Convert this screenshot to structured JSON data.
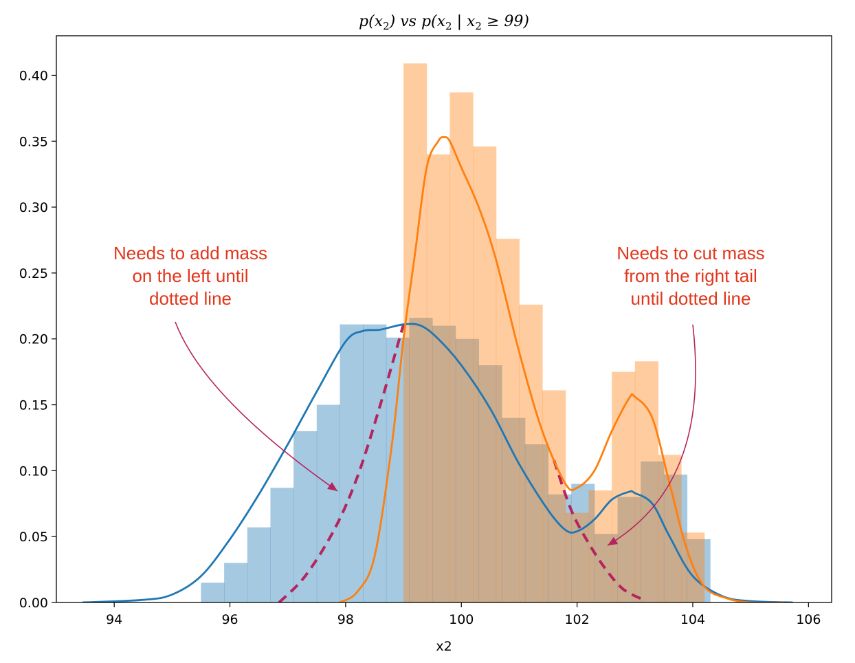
{
  "chart_data": {
    "type": "histogram+kde",
    "title_parts": [
      "p(x",
      "2",
      ") vs p(x",
      "2",
      " | x",
      "2",
      " ≥ 99)"
    ],
    "xlabel": "x2",
    "ylabel": "",
    "xlim": [
      93.0,
      106.4
    ],
    "ylim": [
      0,
      0.43
    ],
    "xticks": [
      94,
      96,
      98,
      100,
      102,
      104,
      106
    ],
    "xtick_labels": [
      "94",
      "96",
      "98",
      "100",
      "102",
      "104",
      "106"
    ],
    "yticks": [
      0.0,
      0.05,
      0.1,
      0.15,
      0.2,
      0.25,
      0.3,
      0.35,
      0.4
    ],
    "ytick_labels": [
      "0.00",
      "0.05",
      "0.10",
      "0.15",
      "0.20",
      "0.25",
      "0.30",
      "0.35",
      "0.40"
    ],
    "grid": false,
    "series": [
      {
        "kind": "histogram",
        "color": "#1f77b4",
        "opacity": 0.4,
        "bin_edges": [
          95.5,
          95.9,
          96.3,
          96.7,
          97.1,
          97.5,
          97.9,
          98.3,
          98.7,
          99.1,
          99.5,
          99.9,
          100.3,
          100.7,
          101.1,
          101.5,
          101.9,
          102.3,
          102.7,
          103.1,
          103.5,
          103.9,
          104.3
        ],
        "values": [
          0.015,
          0.03,
          0.057,
          0.087,
          0.13,
          0.15,
          0.211,
          0.211,
          0.201,
          0.216,
          0.21,
          0.2,
          0.18,
          0.14,
          0.12,
          0.082,
          0.09,
          0.052,
          0.08,
          0.107,
          0.097,
          0.048,
          0.005
        ]
      },
      {
        "kind": "histogram",
        "color": "#ff7f0e",
        "opacity": 0.4,
        "bin_edges": [
          99.0,
          99.4,
          99.8,
          100.2,
          100.6,
          101.0,
          101.4,
          101.8,
          102.2,
          102.6,
          103.0,
          103.4,
          103.8,
          104.2
        ],
        "values": [
          0.409,
          0.34,
          0.387,
          0.346,
          0.276,
          0.226,
          0.161,
          0.068,
          0.085,
          0.175,
          0.183,
          0.112,
          0.053,
          0.006
        ]
      },
      {
        "kind": "kde",
        "color": "#1f77b4",
        "x": [
          93.45,
          94.5,
          95.0,
          95.5,
          96.0,
          96.5,
          97.0,
          97.5,
          98.0,
          98.3,
          98.6,
          99.0,
          99.3,
          99.6,
          100.0,
          100.5,
          101.0,
          101.5,
          101.8,
          102.0,
          102.3,
          102.6,
          102.9,
          103.0,
          103.3,
          103.6,
          104.0,
          104.5,
          105.0,
          105.73
        ],
        "y": [
          0.0,
          0.002,
          0.006,
          0.02,
          0.048,
          0.082,
          0.12,
          0.16,
          0.198,
          0.206,
          0.207,
          0.211,
          0.21,
          0.2,
          0.18,
          0.147,
          0.105,
          0.07,
          0.055,
          0.054,
          0.063,
          0.078,
          0.084,
          0.083,
          0.075,
          0.05,
          0.02,
          0.005,
          0.001,
          0.0
        ]
      },
      {
        "kind": "kde",
        "color": "#ff7f0e",
        "x": [
          97.9,
          98.2,
          98.5,
          98.8,
          99.0,
          99.2,
          99.4,
          99.6,
          99.7,
          99.8,
          100.0,
          100.3,
          100.6,
          101.0,
          101.4,
          101.8,
          102.0,
          102.3,
          102.6,
          102.9,
          103.0,
          103.3,
          103.6,
          103.9,
          104.2,
          104.6,
          105.0,
          105.56
        ],
        "y": [
          0.0,
          0.008,
          0.035,
          0.12,
          0.2,
          0.265,
          0.33,
          0.35,
          0.353,
          0.35,
          0.33,
          0.3,
          0.26,
          0.19,
          0.13,
          0.09,
          0.087,
          0.1,
          0.13,
          0.155,
          0.156,
          0.14,
          0.09,
          0.04,
          0.012,
          0.003,
          0.0,
          0.0
        ]
      },
      {
        "kind": "target-dashed-left",
        "color": "#b5245e",
        "x": [
          96.85,
          97.3,
          97.8,
          98.2,
          98.6,
          99.0
        ],
        "y": [
          0.0,
          0.02,
          0.055,
          0.095,
          0.15,
          0.211
        ]
      },
      {
        "kind": "target-dashed-right",
        "color": "#b5245e",
        "x": [
          101.6,
          101.9,
          102.2,
          102.5,
          102.8,
          103.15
        ],
        "y": [
          0.108,
          0.07,
          0.045,
          0.025,
          0.01,
          0.002
        ]
      }
    ],
    "annotations": [
      {
        "lines": [
          "Needs to add mass",
          "on the left until",
          "dotted line"
        ],
        "color": "#e2361b",
        "arrow_color": "#b5245e",
        "arrow_to": [
          97.9,
          0.083
        ]
      },
      {
        "lines": [
          "Needs to cut mass",
          "from the right tail",
          "until dotted line"
        ],
        "color": "#e2361b",
        "arrow_color": "#b5245e",
        "arrow_to": [
          102.4,
          0.043
        ]
      }
    ]
  }
}
